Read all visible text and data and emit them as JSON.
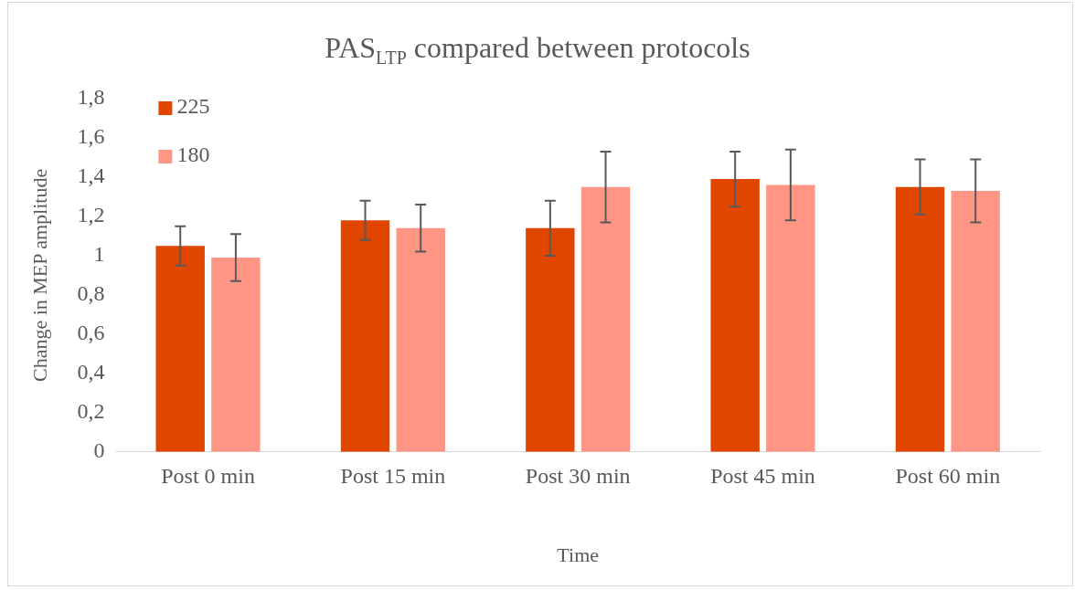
{
  "chart_data": {
    "type": "bar",
    "title": "PAS$_{LTP}$ compared between protocols",
    "xlabel": "Time",
    "ylabel": "Change in MEP amplitude",
    "categories": [
      "Post 0 min",
      "Post 15 min",
      "Post 30 min",
      "Post 45 min",
      "Post 60 min"
    ],
    "series": [
      {
        "name": "225",
        "color": "#e04600",
        "values": [
          1.05,
          1.18,
          1.14,
          1.39,
          1.35
        ],
        "errors": [
          0.1,
          0.1,
          0.14,
          0.14,
          0.14
        ]
      },
      {
        "name": "180",
        "color": "#ff9585",
        "values": [
          0.99,
          1.14,
          1.35,
          1.36,
          1.33
        ],
        "errors": [
          0.12,
          0.12,
          0.18,
          0.18,
          0.16
        ]
      }
    ],
    "ylim": [
      0,
      1.8
    ],
    "yticks": [
      0,
      {
        "value": 0.2,
        "label": "0,2"
      },
      {
        "value": 0.4,
        "label": "0,4"
      },
      {
        "value": 0.6,
        "label": "0,6"
      },
      {
        "value": 0.8,
        "label": "0,8"
      },
      1,
      {
        "value": 1.2,
        "label": "1,2"
      },
      {
        "value": 1.4,
        "label": "1,4"
      },
      {
        "value": 1.6,
        "label": "1,6"
      },
      {
        "value": 1.8,
        "label": "1,8"
      }
    ],
    "grid": false,
    "legend": "top left"
  }
}
